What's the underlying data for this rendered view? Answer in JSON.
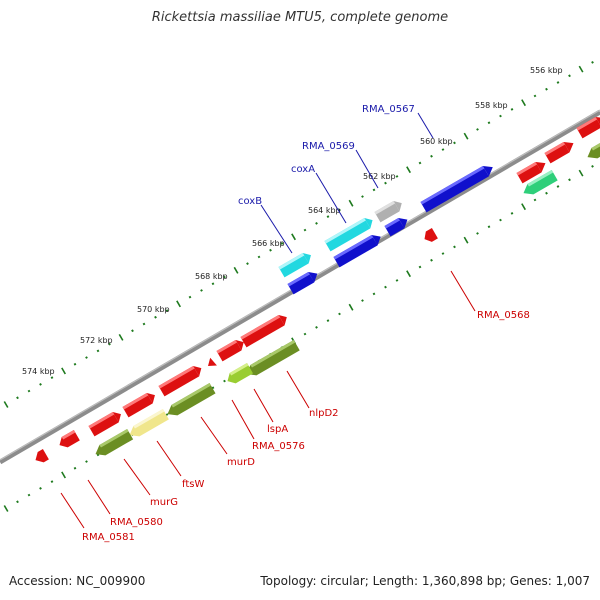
{
  "title": "Rickettsia massiliae MTU5, complete genome",
  "footer": {
    "accession": "Accession: NC_009900",
    "summary": "Topology: circular; Length: 1,360,898 bp; Genes: 1,007"
  },
  "colors": {
    "backbone": "#8c8c8c",
    "ticks": "#1e7a1e",
    "label_red": "#cc0000",
    "label_blue": "#1a1aaa"
  },
  "kbp_labels": [
    "556 kbp",
    "558 kbp",
    "560 kbp",
    "562 kbp",
    "564 kbp",
    "566 kbp",
    "568 kbp",
    "570 kbp",
    "572 kbp",
    "574 kbp"
  ],
  "gene_labels_top": [
    {
      "name": "RMA_0567",
      "color": "blue"
    },
    {
      "name": "RMA_0569",
      "color": "blue"
    },
    {
      "name": "coxA",
      "color": "blue"
    },
    {
      "name": "coxB",
      "color": "blue"
    }
  ],
  "gene_labels_bottom": [
    {
      "name": "RMA_0568",
      "color": "red"
    },
    {
      "name": "nlpD2",
      "color": "red"
    },
    {
      "name": "lspA",
      "color": "red"
    },
    {
      "name": "RMA_0576",
      "color": "red"
    },
    {
      "name": "murD",
      "color": "red"
    },
    {
      "name": "ftsW",
      "color": "red"
    },
    {
      "name": "murG",
      "color": "red"
    },
    {
      "name": "RMA_0580",
      "color": "red"
    },
    {
      "name": "RMA_0581",
      "color": "red"
    }
  ],
  "features": [
    {
      "name": "RMA_0567",
      "strand": "+",
      "color": "#1010cc"
    },
    {
      "name": "RMA_0568",
      "strand": "-",
      "color": "#dd1010"
    },
    {
      "name": "RMA_0569",
      "strand": "+",
      "color": "#b0b0b0"
    },
    {
      "name": "coxA",
      "strand": "+",
      "color": "#22d8e0"
    },
    {
      "name": "coxB",
      "strand": "+",
      "color": "#22d8e0"
    },
    {
      "name": "nlpD2",
      "strand": "-",
      "color": "#6b8e23"
    },
    {
      "name": "lspA",
      "strand": "-",
      "color": "#9acd32"
    },
    {
      "name": "RMA_0576",
      "strand": "-",
      "color": "#dd1010"
    },
    {
      "name": "murD",
      "strand": "-",
      "color": "#6b8e23"
    },
    {
      "name": "ftsW",
      "strand": "-",
      "color": "#f0e68c"
    },
    {
      "name": "murG",
      "strand": "-",
      "color": "#6b8e23"
    },
    {
      "name": "RMA_0580",
      "strand": "-",
      "color": "#dd1010"
    },
    {
      "name": "RMA_0581",
      "strand": "-",
      "color": "#dd1010"
    }
  ]
}
